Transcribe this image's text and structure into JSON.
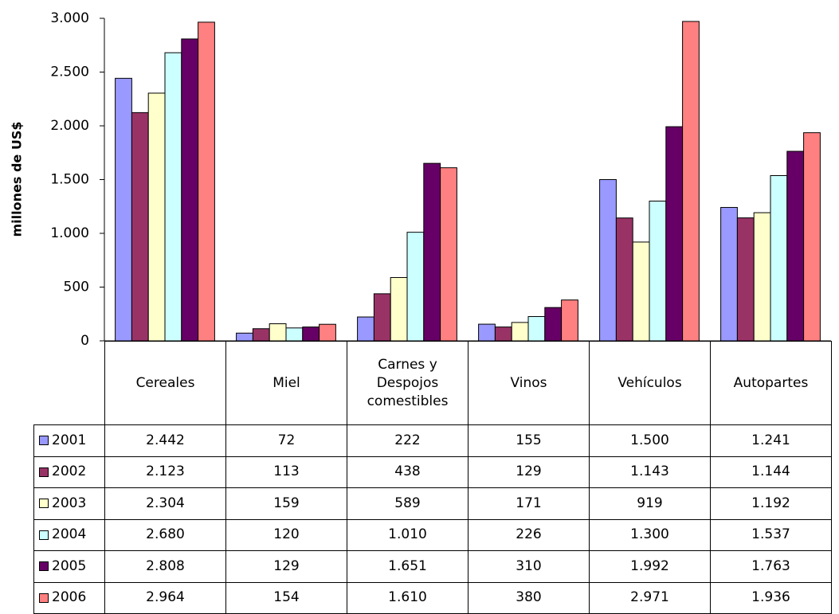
{
  "chart_data": {
    "type": "bar",
    "y_label": "millones de US$",
    "categories": [
      "Cereales",
      "Miel",
      "Carnes y Despojos comestibles",
      "Vinos",
      "Vehículos",
      "Autopartes"
    ],
    "series": [
      {
        "name": "2001",
        "color": "#9999ff",
        "values": [
          2442,
          72,
          222,
          155,
          1500,
          1241
        ],
        "value_labels": [
          "2.442",
          "72",
          "222",
          "155",
          "1.500",
          "1.241"
        ]
      },
      {
        "name": "2002",
        "color": "#993366",
        "values": [
          2123,
          113,
          438,
          129,
          1143,
          1144
        ],
        "value_labels": [
          "2.123",
          "113",
          "438",
          "129",
          "1.143",
          "1.144"
        ]
      },
      {
        "name": "2003",
        "color": "#ffffcc",
        "values": [
          2304,
          159,
          589,
          171,
          919,
          1192
        ],
        "value_labels": [
          "2.304",
          "159",
          "589",
          "171",
          "919",
          "1.192"
        ]
      },
      {
        "name": "2004",
        "color": "#ccffff",
        "values": [
          2680,
          120,
          1010,
          226,
          1300,
          1537
        ],
        "value_labels": [
          "2.680",
          "120",
          "1.010",
          "226",
          "1.300",
          "1.537"
        ]
      },
      {
        "name": "2005",
        "color": "#660066",
        "values": [
          2808,
          129,
          1651,
          310,
          1992,
          1763
        ],
        "value_labels": [
          "2.808",
          "129",
          "1.651",
          "310",
          "1.992",
          "1.763"
        ]
      },
      {
        "name": "2006",
        "color": "#ff8080",
        "values": [
          2964,
          154,
          1610,
          380,
          2971,
          1936
        ],
        "value_labels": [
          "2.964",
          "154",
          "1.610",
          "380",
          "2.971",
          "1.936"
        ]
      }
    ],
    "ylim": [
      0,
      3000
    ],
    "yticks": [
      0,
      500,
      {
        "value": 1000,
        "label": "1.000"
      },
      {
        "value": 1500,
        "label": "1.500"
      },
      {
        "value": 2000,
        "label": "2.000"
      },
      {
        "value": 2500,
        "label": "2.500"
      },
      {
        "value": 3000,
        "label": "3.000"
      }
    ],
    "grid": false
  }
}
